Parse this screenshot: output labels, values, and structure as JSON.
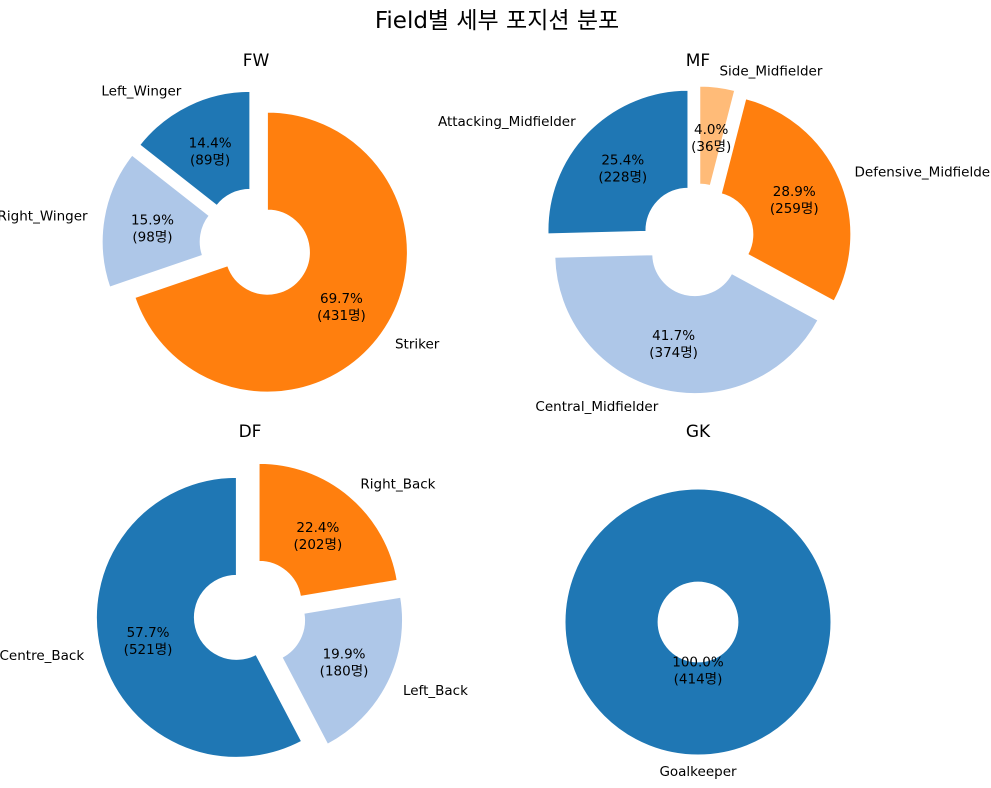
{
  "title": "Field별 세부 포지션 분포",
  "colors": {
    "blue": "#1f77b4",
    "light_blue": "#aec7e8",
    "orange": "#ff7f0e",
    "light_orange": "#ffbb78"
  },
  "chart_data": [
    {
      "type": "pie",
      "title": "FW",
      "donut": true,
      "labels": [
        "Left_Winger",
        "Right_Winger",
        "Striker"
      ],
      "values": [
        89,
        98,
        431
      ],
      "percentages": [
        "14.4%",
        "15.9%",
        "69.7%"
      ],
      "counts": [
        "(89명)",
        "(98명)",
        "(431명)"
      ],
      "colors": [
        "#1f77b4",
        "#aec7e8",
        "#ff7f0e"
      ]
    },
    {
      "type": "pie",
      "title": "MF",
      "donut": true,
      "labels": [
        "Side_Midfielder",
        "Defensive_Midfielder",
        "Central_Midfielder",
        "Attacking_Midfielder"
      ],
      "values": [
        36,
        259,
        374,
        228
      ],
      "percentages": [
        "4.0%",
        "28.9%",
        "41.7%",
        "25.4%"
      ],
      "counts": [
        "(36명)",
        "(259명)",
        "(374명)",
        "(228명)"
      ],
      "colors": [
        "#ffbb78",
        "#ff7f0e",
        "#aec7e8",
        "#1f77b4"
      ]
    },
    {
      "type": "pie",
      "title": "DF",
      "donut": true,
      "labels": [
        "Right_Back",
        "Left_Back",
        "Centre_Back"
      ],
      "values": [
        202,
        180,
        521
      ],
      "percentages": [
        "22.4%",
        "19.9%",
        "57.7%"
      ],
      "counts": [
        "(202명)",
        "(180명)",
        "(521명)"
      ],
      "colors": [
        "#ff7f0e",
        "#aec7e8",
        "#1f77b4"
      ]
    },
    {
      "type": "pie",
      "title": "GK",
      "donut": true,
      "labels": [
        "Goalkeeper"
      ],
      "values": [
        414
      ],
      "percentages": [
        "100.0%"
      ],
      "counts": [
        "(414명)"
      ],
      "colors": [
        "#1f77b4"
      ]
    }
  ]
}
